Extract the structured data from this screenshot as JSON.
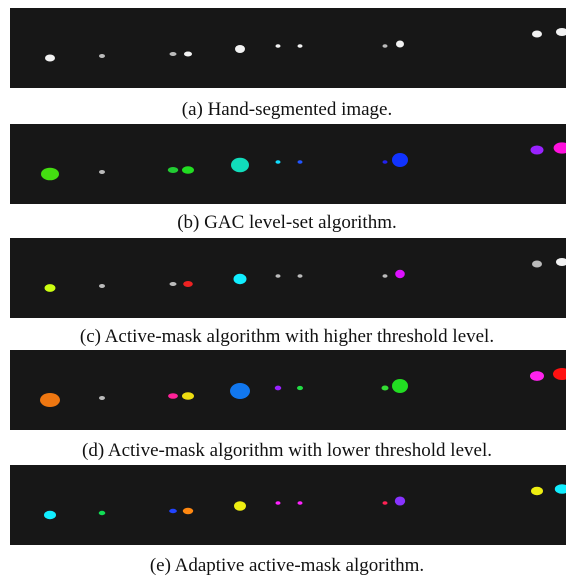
{
  "figure": {
    "panels": [
      {
        "caption": "(a) Hand-segmented image."
      },
      {
        "caption": "(b) GAC level-set algorithm."
      },
      {
        "caption": "(c) Active-mask algorithm with higher threshold level."
      },
      {
        "caption": "(d) Active-mask algorithm with lower threshold level."
      },
      {
        "caption": "(e) Adaptive active-mask algorithm."
      }
    ]
  }
}
